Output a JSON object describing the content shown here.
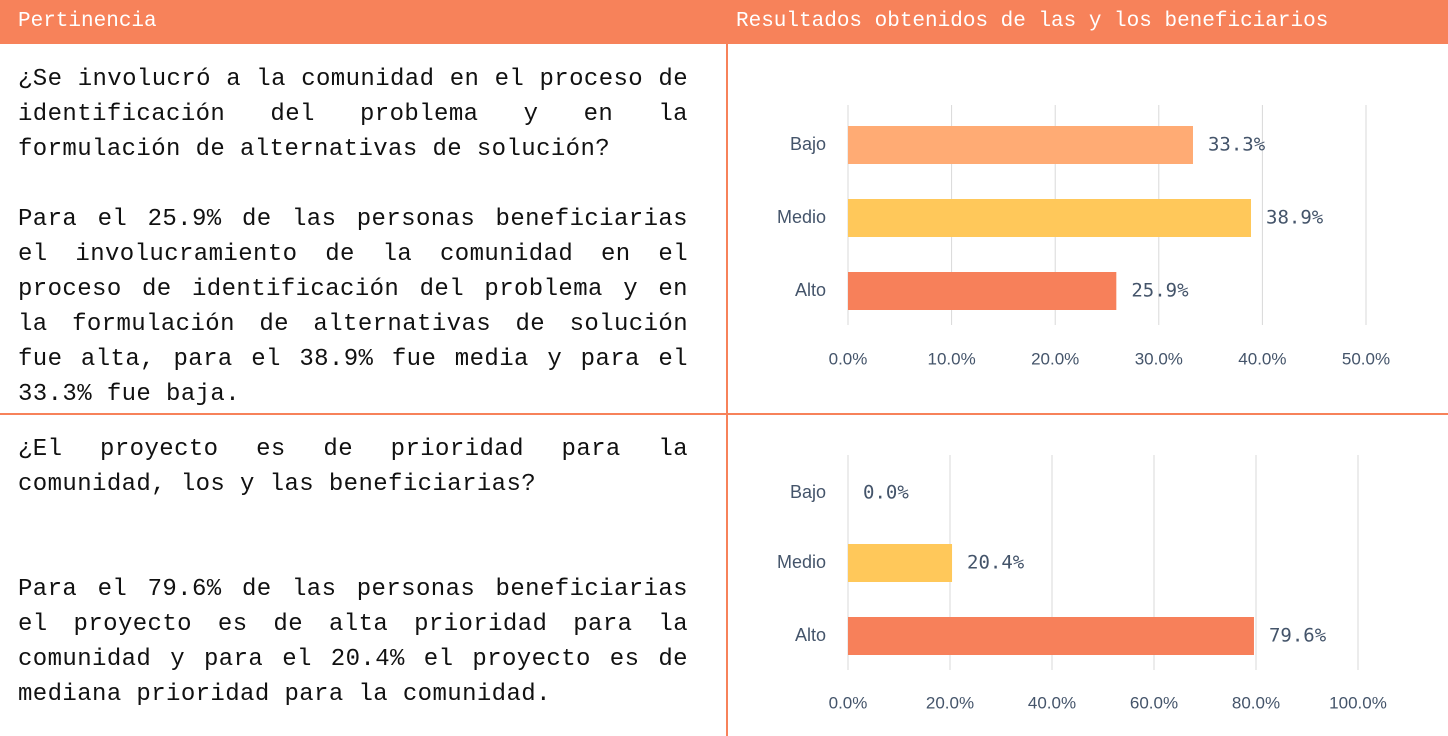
{
  "header": {
    "left": "Pertinencia",
    "right": "Resultados obtenidos de las y los beneficiarios"
  },
  "rows": [
    {
      "question": "¿Se involucró a la comunidad en el proceso de identificación del problema y en la formulación de alternativas de solución?",
      "text": "Para el 25.9% de las personas beneficiarias el involucramiento de la comunidad en el proceso de identificación del problema y en la formulación de alternativas de solución fue alta, para el 38.9% fue media y para el 33.3% fue baja.",
      "chart_data": {
        "type": "bar",
        "orientation": "horizontal",
        "categories": [
          "Bajo",
          "Medio",
          "Alto"
        ],
        "values": [
          33.3,
          38.9,
          25.9
        ],
        "value_labels": [
          "33.3%",
          "38.9%",
          "25.9%"
        ],
        "colors": [
          "#ffab74",
          "#ffc85a",
          "#f7805a"
        ],
        "xlim": [
          0,
          50
        ],
        "xticks": [
          {
            "value": 0,
            "label": "0.0%"
          },
          {
            "value": 10,
            "label": "10.0%"
          },
          {
            "value": 20,
            "label": "20.0%"
          },
          {
            "value": 30,
            "label": "30.0%"
          },
          {
            "value": 40,
            "label": "40.0%"
          },
          {
            "value": 50,
            "label": "50.0%"
          }
        ],
        "grid": true
      }
    },
    {
      "question": "¿El proyecto es de prioridad para la comunidad, los y las beneficiarias?",
      "text": "Para el 79.6% de las personas beneficiarias el proyecto es de alta prioridad para la comunidad y para el 20.4% el proyecto es de mediana prioridad para la comunidad.",
      "chart_data": {
        "type": "bar",
        "orientation": "horizontal",
        "categories": [
          "Bajo",
          "Medio",
          "Alto"
        ],
        "values": [
          0,
          20.4,
          79.6
        ],
        "value_labels": [
          "0.0%",
          "20.4%",
          "79.6%"
        ],
        "colors": [
          "#ffab74",
          "#ffc85a",
          "#f7805a"
        ],
        "xlim": [
          0,
          100
        ],
        "xticks": [
          {
            "value": 0,
            "label": "0.0%"
          },
          {
            "value": 20,
            "label": "20.0%"
          },
          {
            "value": 40,
            "label": "40.0%"
          },
          {
            "value": 60,
            "label": "60.0%"
          },
          {
            "value": 80,
            "label": "80.0%"
          },
          {
            "value": 100,
            "label": "100.0%"
          }
        ],
        "grid": true
      }
    }
  ]
}
